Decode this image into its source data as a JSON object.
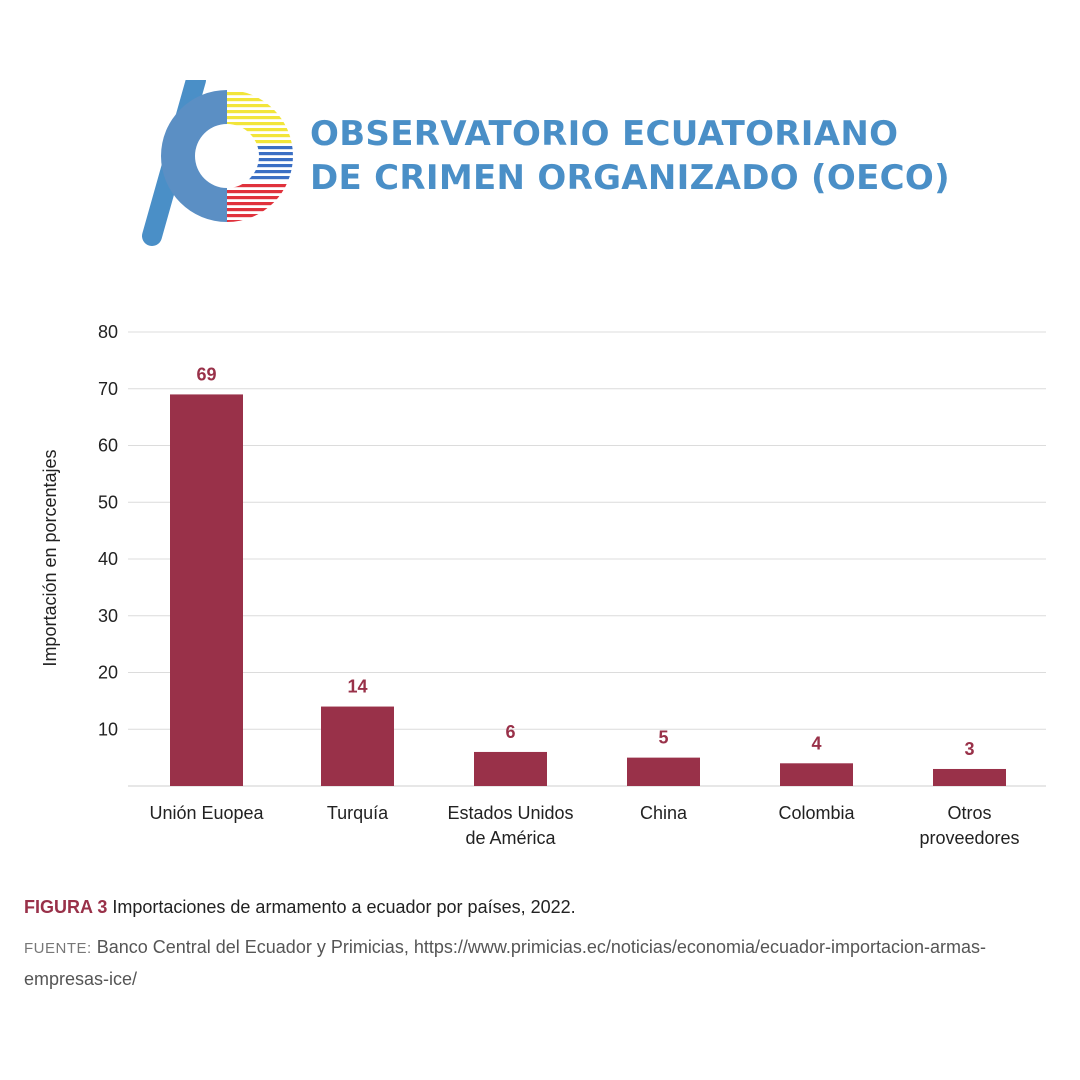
{
  "logo": {
    "line1": "OBSERVATORIO ECUATORIANO",
    "line2": "DE CRIMEN ORGANIZADO (OECO)",
    "colors": {
      "primary": "#4a8fc7",
      "yellow": "#f2e53a",
      "blue": "#3b6fc4",
      "red": "#e0323c"
    }
  },
  "chart_data": {
    "type": "bar",
    "categories": [
      [
        "Unión Euopea"
      ],
      [
        "Turquía"
      ],
      [
        "Estados Unidos",
        "de América"
      ],
      [
        "China"
      ],
      [
        "Colombia"
      ],
      [
        "Otros",
        "proveedores"
      ]
    ],
    "values": [
      69,
      14,
      6,
      5,
      4,
      3
    ],
    "data_labels": [
      "69",
      "14",
      "6",
      "5",
      "4",
      "3"
    ],
    "ylabel": "Importación en porcentajes",
    "xlabel": "",
    "yticks": [
      10,
      20,
      30,
      40,
      50,
      60,
      70,
      80
    ],
    "ylim": [
      0,
      80
    ],
    "grid": true,
    "bar_color": "#993149"
  },
  "caption": {
    "figure_label": "FIGURA 3",
    "text": "Importaciones de armamento a ecuador por países, 2022."
  },
  "source": {
    "label": "FUENTE:",
    "text": "Banco Central del Ecuador y Primicias, https://www.primicias.ec/noticias/economia/ecuador-importacion-armas-empresas-ice/"
  }
}
